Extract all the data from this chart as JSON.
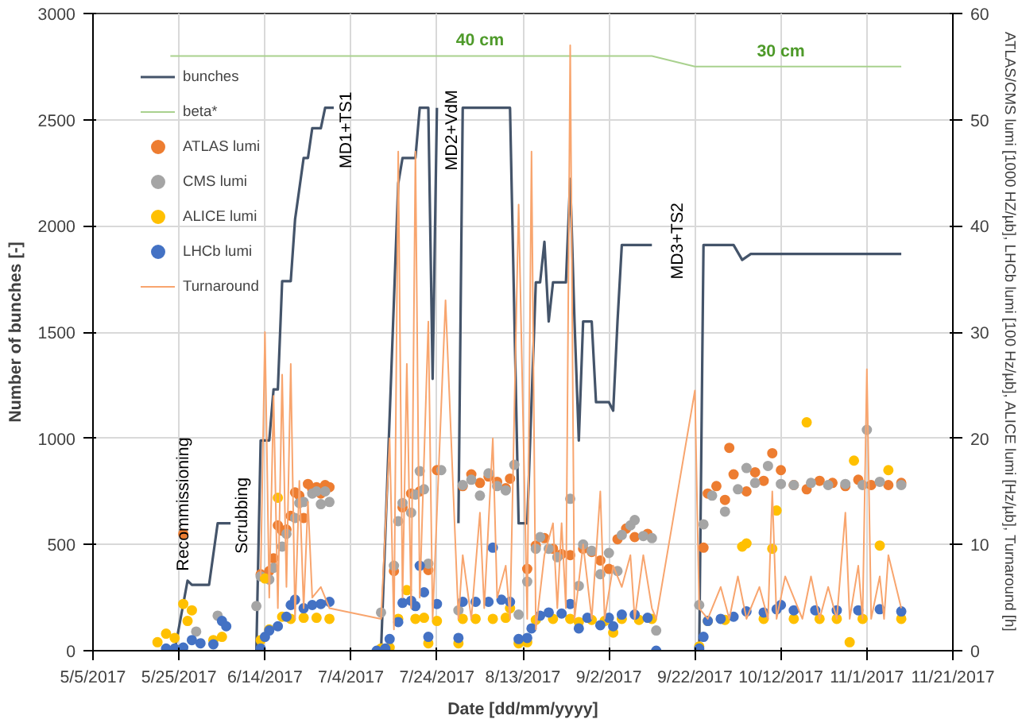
{
  "chart_data": {
    "type": "line",
    "xlabel": "Date [dd/mm/yyyy]",
    "ylabel": "Number of bunches [-]",
    "y2label": "ATLAS/CMS lumi [1000 HZ/µb], LHCb lumi [100 Hz/µb], ALICE lumi [Hz/µb], Turnaround [h]",
    "xlim": [
      "2017-05-05",
      "2017-11-21"
    ],
    "xticks": [
      {
        "value": "2017-05-05",
        "label": "5/5/2017"
      },
      {
        "value": "2017-05-25",
        "label": "5/25/2017"
      },
      {
        "value": "2017-06-14",
        "label": "6/14/2017"
      },
      {
        "value": "2017-07-04",
        "label": "7/4/2017"
      },
      {
        "value": "2017-07-24",
        "label": "7/24/2017"
      },
      {
        "value": "2017-08-13",
        "label": "8/13/2017"
      },
      {
        "value": "2017-09-02",
        "label": "9/2/2017"
      },
      {
        "value": "2017-09-22",
        "label": "9/22/2017"
      },
      {
        "value": "2017-10-12",
        "label": "10/12/2017"
      },
      {
        "value": "2017-11-01",
        "label": "11/1/2017"
      },
      {
        "value": "2017-11-21",
        "label": "11/21/2017"
      }
    ],
    "ylim": [
      0,
      3000
    ],
    "yticks": [
      0,
      500,
      1000,
      1500,
      2000,
      2500,
      3000
    ],
    "y2lim": [
      0,
      60
    ],
    "y2ticks": [
      0,
      10,
      20,
      30,
      40,
      50,
      60
    ],
    "grid": true,
    "legend": "top left",
    "annotations": [
      "Recommissioning",
      "Scrubbing",
      "MD1+TS1",
      "MD2+VdM",
      "MD3+TS2",
      "40 cm",
      "30 cm"
    ],
    "series": [
      {
        "name": "bunches",
        "color": "#44546a",
        "x": [
          "2017-05-24",
          "2017-05-27",
          "2017-05-28",
          "2017-06-01",
          "2017-06-03",
          "2017-06-06",
          null,
          "2017-06-12",
          "2017-06-13",
          "2017-06-15",
          "2017-06-16",
          "2017-06-17",
          "2017-06-18",
          "2017-06-20",
          "2017-06-21",
          "2017-06-23",
          "2017-06-24",
          "2017-06-25",
          "2017-06-27",
          "2017-06-28",
          "2017-06-30",
          null,
          "2017-07-11",
          "2017-07-15",
          "2017-07-16",
          "2017-07-19",
          "2017-07-20",
          "2017-07-22",
          "2017-07-23",
          "2017-07-24",
          null,
          "2017-07-29",
          "2017-07-30",
          "2017-08-10",
          "2017-08-12",
          "2017-08-14",
          "2017-08-16",
          "2017-08-17",
          "2017-08-18",
          "2017-08-19",
          "2017-08-20",
          "2017-08-23",
          "2017-08-24",
          "2017-08-25",
          "2017-08-26",
          "2017-08-27",
          "2017-08-29",
          "2017-08-30",
          "2017-09-02",
          "2017-09-03",
          "2017-09-04",
          "2017-09-05",
          "2017-09-12",
          null,
          "2017-09-23",
          "2017-09-24",
          "2017-10-01",
          "2017-10-03",
          "2017-10-05",
          "2017-11-09"
        ],
        "values": [
          0,
          330,
          310,
          310,
          600,
          600,
          null,
          0,
          990,
          990,
          1230,
          1230,
          1740,
          1740,
          2030,
          2320,
          2320,
          2460,
          2460,
          2556,
          2556,
          null,
          0,
          2200,
          2320,
          2320,
          2556,
          2556,
          1280,
          2556,
          null,
          600,
          2556,
          2556,
          600,
          600,
          1734,
          1734,
          1925,
          1550,
          1734,
          1734,
          2222,
          1550,
          990,
          1550,
          1550,
          1170,
          1170,
          1130,
          1550,
          1910,
          1910,
          null,
          0,
          1910,
          1910,
          1840,
          1868,
          1868
        ]
      },
      {
        "name": "beta*",
        "axis": "y2",
        "color": "#a9d18e",
        "x": [
          "2017-05-23",
          "2017-09-12",
          "2017-09-22",
          "2017-11-09"
        ],
        "values": [
          56,
          56,
          55,
          55
        ]
      },
      {
        "name": "ATLAS lumi",
        "type": "scatter",
        "marker": "circle",
        "axis": "y2",
        "color": "#ed7d31",
        "x": [
          "2017-05-26",
          "2017-06-13",
          "2017-06-15",
          "2017-06-16",
          "2017-06-17",
          "2017-06-18",
          "2017-06-19",
          "2017-06-20",
          "2017-06-21",
          "2017-06-22",
          "2017-06-23",
          "2017-06-24",
          "2017-06-25",
          "2017-06-26",
          "2017-06-27",
          "2017-06-28",
          "2017-06-29",
          "2017-07-14",
          "2017-07-16",
          "2017-07-18",
          "2017-07-20",
          "2017-07-22",
          "2017-07-24",
          "2017-07-30",
          "2017-08-01",
          "2017-08-03",
          "2017-08-05",
          "2017-08-07",
          "2017-08-09",
          "2017-08-10",
          "2017-08-14",
          "2017-08-16",
          "2017-08-18",
          "2017-08-20",
          "2017-08-22",
          "2017-08-24",
          "2017-08-27",
          "2017-08-29",
          "2017-08-31",
          "2017-09-02",
          "2017-09-04",
          "2017-09-06",
          "2017-09-08",
          "2017-09-11",
          "2017-09-24",
          "2017-09-25",
          "2017-09-27",
          "2017-09-29",
          "2017-09-30",
          "2017-10-01",
          "2017-10-04",
          "2017-10-06",
          "2017-10-08",
          "2017-10-10",
          "2017-10-12",
          "2017-10-15",
          "2017-10-18",
          "2017-10-21",
          "2017-10-24",
          "2017-10-27",
          "2017-10-30",
          "2017-11-02",
          "2017-11-06",
          "2017-11-09"
        ],
        "values": [
          11,
          7.2,
          7.5,
          8.7,
          11.8,
          11.3,
          11.4,
          12.7,
          14.9,
          14.6,
          12.5,
          15.7,
          15.2,
          15.4,
          14.8,
          15.6,
          15.4,
          7.5,
          13.5,
          14.8,
          15,
          7.6,
          17,
          15.5,
          16.6,
          15.8,
          16.4,
          15.9,
          15.3,
          16.2,
          7.7,
          9.9,
          10.6,
          9.6,
          9.1,
          9,
          9.6,
          9.3,
          8.5,
          7.7,
          10.5,
          11.5,
          10.7,
          11,
          9.7,
          14.8,
          15.5,
          14.2,
          19.1,
          16.6,
          15,
          16.8,
          16,
          18.6,
          17,
          15.6,
          15.2,
          16,
          15.8,
          15.5,
          16.1,
          15.6,
          15.6,
          15.8
        ]
      },
      {
        "name": "CMS lumi",
        "type": "scatter",
        "marker": "circle",
        "axis": "y2",
        "color": "#a5a5a5",
        "x": [
          "2017-05-29",
          "2017-06-03",
          "2017-06-12",
          "2017-06-13",
          "2017-06-15",
          "2017-06-16",
          "2017-06-18",
          "2017-06-19",
          "2017-06-21",
          "2017-06-22",
          "2017-06-23",
          "2017-06-25",
          "2017-06-26",
          "2017-06-27",
          "2017-06-28",
          "2017-06-29",
          "2017-07-11",
          "2017-07-14",
          "2017-07-15",
          "2017-07-16",
          "2017-07-18",
          "2017-07-19",
          "2017-07-20",
          "2017-07-21",
          "2017-07-22",
          "2017-07-25",
          "2017-07-29",
          "2017-07-30",
          "2017-08-01",
          "2017-08-03",
          "2017-08-05",
          "2017-08-07",
          "2017-08-09",
          "2017-08-11",
          "2017-08-12",
          "2017-08-14",
          "2017-08-16",
          "2017-08-17",
          "2017-08-19",
          "2017-08-21",
          "2017-08-24",
          "2017-08-26",
          "2017-08-27",
          "2017-08-29",
          "2017-08-31",
          "2017-09-02",
          "2017-09-04",
          "2017-09-05",
          "2017-09-07",
          "2017-09-08",
          "2017-09-10",
          "2017-09-12",
          "2017-09-13",
          "2017-09-23",
          "2017-09-24",
          "2017-09-26",
          "2017-09-29",
          "2017-10-02",
          "2017-10-04",
          "2017-10-06",
          "2017-10-09",
          "2017-10-12",
          "2017-10-15",
          "2017-10-19",
          "2017-10-23",
          "2017-10-27",
          "2017-10-31",
          "2017-11-01",
          "2017-11-04",
          "2017-11-09"
        ],
        "values": [
          1.8,
          3.3,
          4.2,
          7,
          6.7,
          7.8,
          9.8,
          11,
          12.5,
          13.9,
          14,
          14.8,
          15,
          13.8,
          15,
          14,
          3.6,
          8,
          12.2,
          13.9,
          13,
          14.7,
          16.9,
          15.2,
          8.2,
          17,
          3.8,
          15.6,
          16.1,
          14.6,
          16.7,
          15.5,
          15.1,
          17.5,
          3.4,
          6.5,
          9.6,
          10.7,
          9.6,
          8.8,
          14.3,
          6.1,
          10,
          9.4,
          7.2,
          9.2,
          7.5,
          10.9,
          11.8,
          12.3,
          10.8,
          10.6,
          1.9,
          4.3,
          11.9,
          14.6,
          13.1,
          15.2,
          17.2,
          15.8,
          17.4,
          15.7,
          15.6,
          15.8,
          15.6,
          15.7,
          15.6,
          20.8,
          15.9,
          15.6
        ]
      },
      {
        "name": "ALICE lumi",
        "type": "scatter",
        "marker": "circle",
        "axis": "y2",
        "color": "#ffc000",
        "x": [
          "2017-05-20",
          "2017-05-22",
          "2017-05-24",
          "2017-05-26",
          "2017-05-27",
          "2017-05-28",
          "2017-06-02",
          "2017-06-04",
          "2017-06-13",
          "2017-06-14",
          "2017-06-15",
          "2017-06-17",
          "2017-06-18",
          "2017-06-20",
          "2017-06-23",
          "2017-06-26",
          "2017-06-29",
          "2017-07-11",
          "2017-07-13",
          "2017-07-15",
          "2017-07-17",
          "2017-07-19",
          "2017-07-21",
          "2017-07-22",
          "2017-07-24",
          "2017-07-29",
          "2017-07-30",
          "2017-08-02",
          "2017-08-06",
          "2017-08-09",
          "2017-08-10",
          "2017-08-12",
          "2017-08-14",
          "2017-08-16",
          "2017-08-20",
          "2017-08-24",
          "2017-08-26",
          "2017-08-29",
          "2017-09-01",
          "2017-09-03",
          "2017-09-05",
          "2017-09-09",
          "2017-09-12",
          "2017-09-23",
          "2017-09-25",
          "2017-09-29",
          "2017-10-03",
          "2017-10-04",
          "2017-10-08",
          "2017-10-10",
          "2017-10-11",
          "2017-10-15",
          "2017-10-18",
          "2017-10-21",
          "2017-10-25",
          "2017-10-28",
          "2017-10-29",
          "2017-10-31",
          "2017-11-04",
          "2017-11-06",
          "2017-11-09"
        ],
        "values": [
          0.8,
          1.6,
          1.2,
          4.4,
          2.8,
          3.8,
          1,
          1.3,
          1,
          6.8,
          2,
          14.4,
          3.2,
          3,
          3.1,
          3.1,
          3,
          0.2,
          0.3,
          3,
          5.7,
          3,
          3.1,
          0.7,
          2.8,
          0.7,
          3,
          3,
          3,
          3.1,
          4,
          0.7,
          0.8,
          2.9,
          3,
          3,
          2.7,
          2.9,
          2.8,
          1.7,
          3,
          2.9,
          3,
          0.4,
          2.8,
          2.9,
          9.8,
          10.1,
          3,
          9.6,
          13.2,
          3,
          21.5,
          3,
          3,
          0.8,
          17.9,
          3,
          9.9,
          17,
          3
        ]
      },
      {
        "name": "LHCb lumi",
        "type": "scatter",
        "marker": "circle",
        "axis": "y2",
        "color": "#4472c4",
        "x": [
          "2017-05-22",
          "2017-05-24",
          "2017-05-26",
          "2017-05-28",
          "2017-05-30",
          "2017-06-02",
          "2017-06-04",
          "2017-06-05",
          "2017-06-13",
          "2017-06-14",
          "2017-06-15",
          "2017-06-17",
          "2017-06-19",
          "2017-06-20",
          "2017-06-21",
          "2017-06-23",
          "2017-06-25",
          "2017-06-27",
          "2017-06-29",
          "2017-07-10",
          "2017-07-12",
          "2017-07-13",
          "2017-07-15",
          "2017-07-16",
          "2017-07-18",
          "2017-07-19",
          "2017-07-20",
          "2017-07-21",
          "2017-07-22",
          "2017-07-24",
          "2017-07-29",
          "2017-07-30",
          "2017-08-02",
          "2017-08-05",
          "2017-08-06",
          "2017-08-08",
          "2017-08-10",
          "2017-08-12",
          "2017-08-14",
          "2017-08-15",
          "2017-08-17",
          "2017-08-19",
          "2017-08-22",
          "2017-08-24",
          "2017-08-26",
          "2017-08-28",
          "2017-08-31",
          "2017-09-02",
          "2017-09-03",
          "2017-09-05",
          "2017-09-08",
          "2017-09-11",
          "2017-09-13",
          "2017-09-23",
          "2017-09-24",
          "2017-09-25",
          "2017-09-28",
          "2017-10-01",
          "2017-10-04",
          "2017-10-08",
          "2017-10-11",
          "2017-10-12",
          "2017-10-15",
          "2017-10-20",
          "2017-10-25",
          "2017-10-30",
          "2017-11-04",
          "2017-11-09"
        ],
        "values": [
          0.2,
          0.2,
          0.3,
          1,
          0.7,
          0.6,
          2.8,
          2.3,
          0.2,
          1.3,
          1.9,
          2.3,
          3.2,
          4.3,
          4.8,
          4,
          4.3,
          4.4,
          4.6,
          0,
          0.2,
          1.1,
          2.7,
          4.5,
          4.7,
          4.2,
          8,
          5.5,
          1.3,
          4.4,
          1.2,
          4.6,
          4.6,
          4.6,
          9.7,
          4.8,
          4.6,
          1.1,
          1.2,
          2.1,
          3.3,
          3.6,
          3.5,
          4.4,
          2.1,
          3.1,
          2.4,
          3.1,
          2.3,
          3.4,
          3.4,
          3.1,
          0,
          0.2,
          1.3,
          2.8,
          3,
          3.2,
          3.7,
          3.6,
          3.9,
          4.3,
          3.8,
          3.8,
          3.8,
          3.8,
          3.9,
          3.7
        ]
      },
      {
        "name": "Turnaround",
        "axis": "y2",
        "color": "#f8a56e",
        "x": [
          "2017-06-13",
          "2017-06-14",
          "2017-06-15",
          "2017-06-16",
          "2017-06-17",
          "2017-06-18",
          "2017-06-19",
          "2017-06-20",
          "2017-06-21",
          "2017-06-22",
          "2017-06-23",
          "2017-06-24",
          "2017-06-25",
          "2017-06-27",
          "2017-06-29",
          "2017-07-11",
          "2017-07-13",
          "2017-07-14",
          "2017-07-15",
          "2017-07-16",
          "2017-07-17",
          "2017-07-18",
          "2017-07-19",
          "2017-07-20",
          "2017-07-22",
          "2017-07-23",
          "2017-07-26",
          "2017-07-29",
          "2017-07-30",
          "2017-08-01",
          "2017-08-03",
          "2017-08-04",
          "2017-08-06",
          "2017-08-07",
          "2017-08-09",
          "2017-08-10",
          "2017-08-12",
          "2017-08-14",
          "2017-08-15",
          "2017-08-16",
          "2017-08-18",
          "2017-08-20",
          "2017-08-21",
          "2017-08-22",
          "2017-08-23",
          "2017-08-24",
          "2017-08-25",
          "2017-08-27",
          "2017-08-29",
          "2017-08-31",
          "2017-09-01",
          "2017-09-03",
          "2017-09-05",
          "2017-09-07",
          "2017-09-08",
          "2017-09-10",
          "2017-09-12",
          "2017-09-13",
          "2017-09-22",
          "2017-09-23",
          "2017-09-25",
          "2017-09-28",
          "2017-09-30",
          "2017-10-02",
          "2017-10-04",
          "2017-10-07",
          "2017-10-09",
          "2017-10-10",
          "2017-10-11",
          "2017-10-13",
          "2017-10-15",
          "2017-10-17",
          "2017-10-19",
          "2017-10-21",
          "2017-10-23",
          "2017-10-25",
          "2017-10-27",
          "2017-10-28",
          "2017-10-30",
          "2017-10-31",
          "2017-11-01",
          "2017-11-02",
          "2017-11-04",
          "2017-11-05",
          "2017-11-06",
          "2017-11-09"
        ],
        "values": [
          7,
          30,
          5,
          24,
          4,
          26,
          6,
          27,
          3,
          16,
          4,
          14,
          5,
          6,
          4,
          3,
          20,
          2,
          47,
          5,
          27,
          4,
          47,
          5,
          31,
          3,
          33,
          3,
          9,
          3,
          13,
          4,
          20,
          5,
          8,
          3,
          42,
          3,
          47,
          2,
          9,
          12,
          4,
          12,
          4,
          57,
          3,
          10,
          3,
          15,
          3,
          8,
          6,
          9,
          3,
          9,
          4,
          3,
          24.5,
          4,
          3,
          6,
          3,
          7,
          3,
          6,
          3,
          15,
          3,
          7,
          5,
          3,
          7,
          3,
          6,
          3,
          13,
          3,
          8,
          3,
          26.5,
          3,
          7,
          3,
          9,
          4
        ]
      }
    ]
  }
}
